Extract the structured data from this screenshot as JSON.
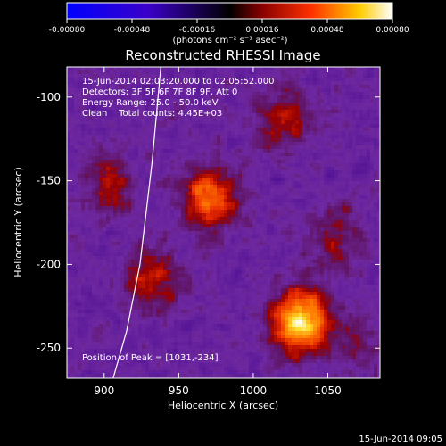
{
  "chart_data": {
    "type": "heatmap",
    "title": "Reconstructed RHESSI Image",
    "xlabel": "Heliocentric X (arcsec)",
    "ylabel": "Heliocentric Y (arcsec)",
    "xlim": [
      875,
      1085
    ],
    "ylim": [
      -268,
      -82
    ],
    "x_ticks": [
      900,
      950,
      1000,
      1050
    ],
    "y_ticks": [
      -100,
      -150,
      -200,
      -250
    ],
    "colorbar": {
      "min": -0.0008,
      "max": 0.0008,
      "ticks": [
        "-0.00080",
        "-0.00048",
        "-0.00016",
        "0.00016",
        "0.00048",
        "0.00080"
      ],
      "label": "(photons cm⁻² s⁻¹ asec⁻²)"
    },
    "sources": [
      {
        "x": 1031,
        "y": -234,
        "value": 0.0008
      },
      {
        "x": 970,
        "y": -160,
        "value": 0.00055
      },
      {
        "x": 1020,
        "y": -113,
        "value": 0.0003
      },
      {
        "x": 903,
        "y": -152,
        "value": 0.0003
      },
      {
        "x": 932,
        "y": -210,
        "value": 0.00035
      },
      {
        "x": 1055,
        "y": -185,
        "value": 0.00025
      },
      {
        "x": 1070,
        "y": -250,
        "value": 0.00015
      }
    ],
    "limb_curve_x": [
      938,
      932,
      924,
      915,
      906
    ],
    "limb_curve_y": [
      -82,
      -140,
      -200,
      -240,
      -268
    ]
  },
  "info": {
    "time_range": "15-Jun-2014 02:03:20.000 to 02:05:52.000",
    "detectors": "Detectors: 3F 5F 6F 7F 8F 9F, Att 0",
    "energy": "Energy Range: 25.0 - 50.0 keV",
    "method": "Clean    Total counts: 4.45E+03",
    "peak": "Position of Peak = [1031,-234]"
  },
  "footer_date": "15-Jun-2014 09:05"
}
